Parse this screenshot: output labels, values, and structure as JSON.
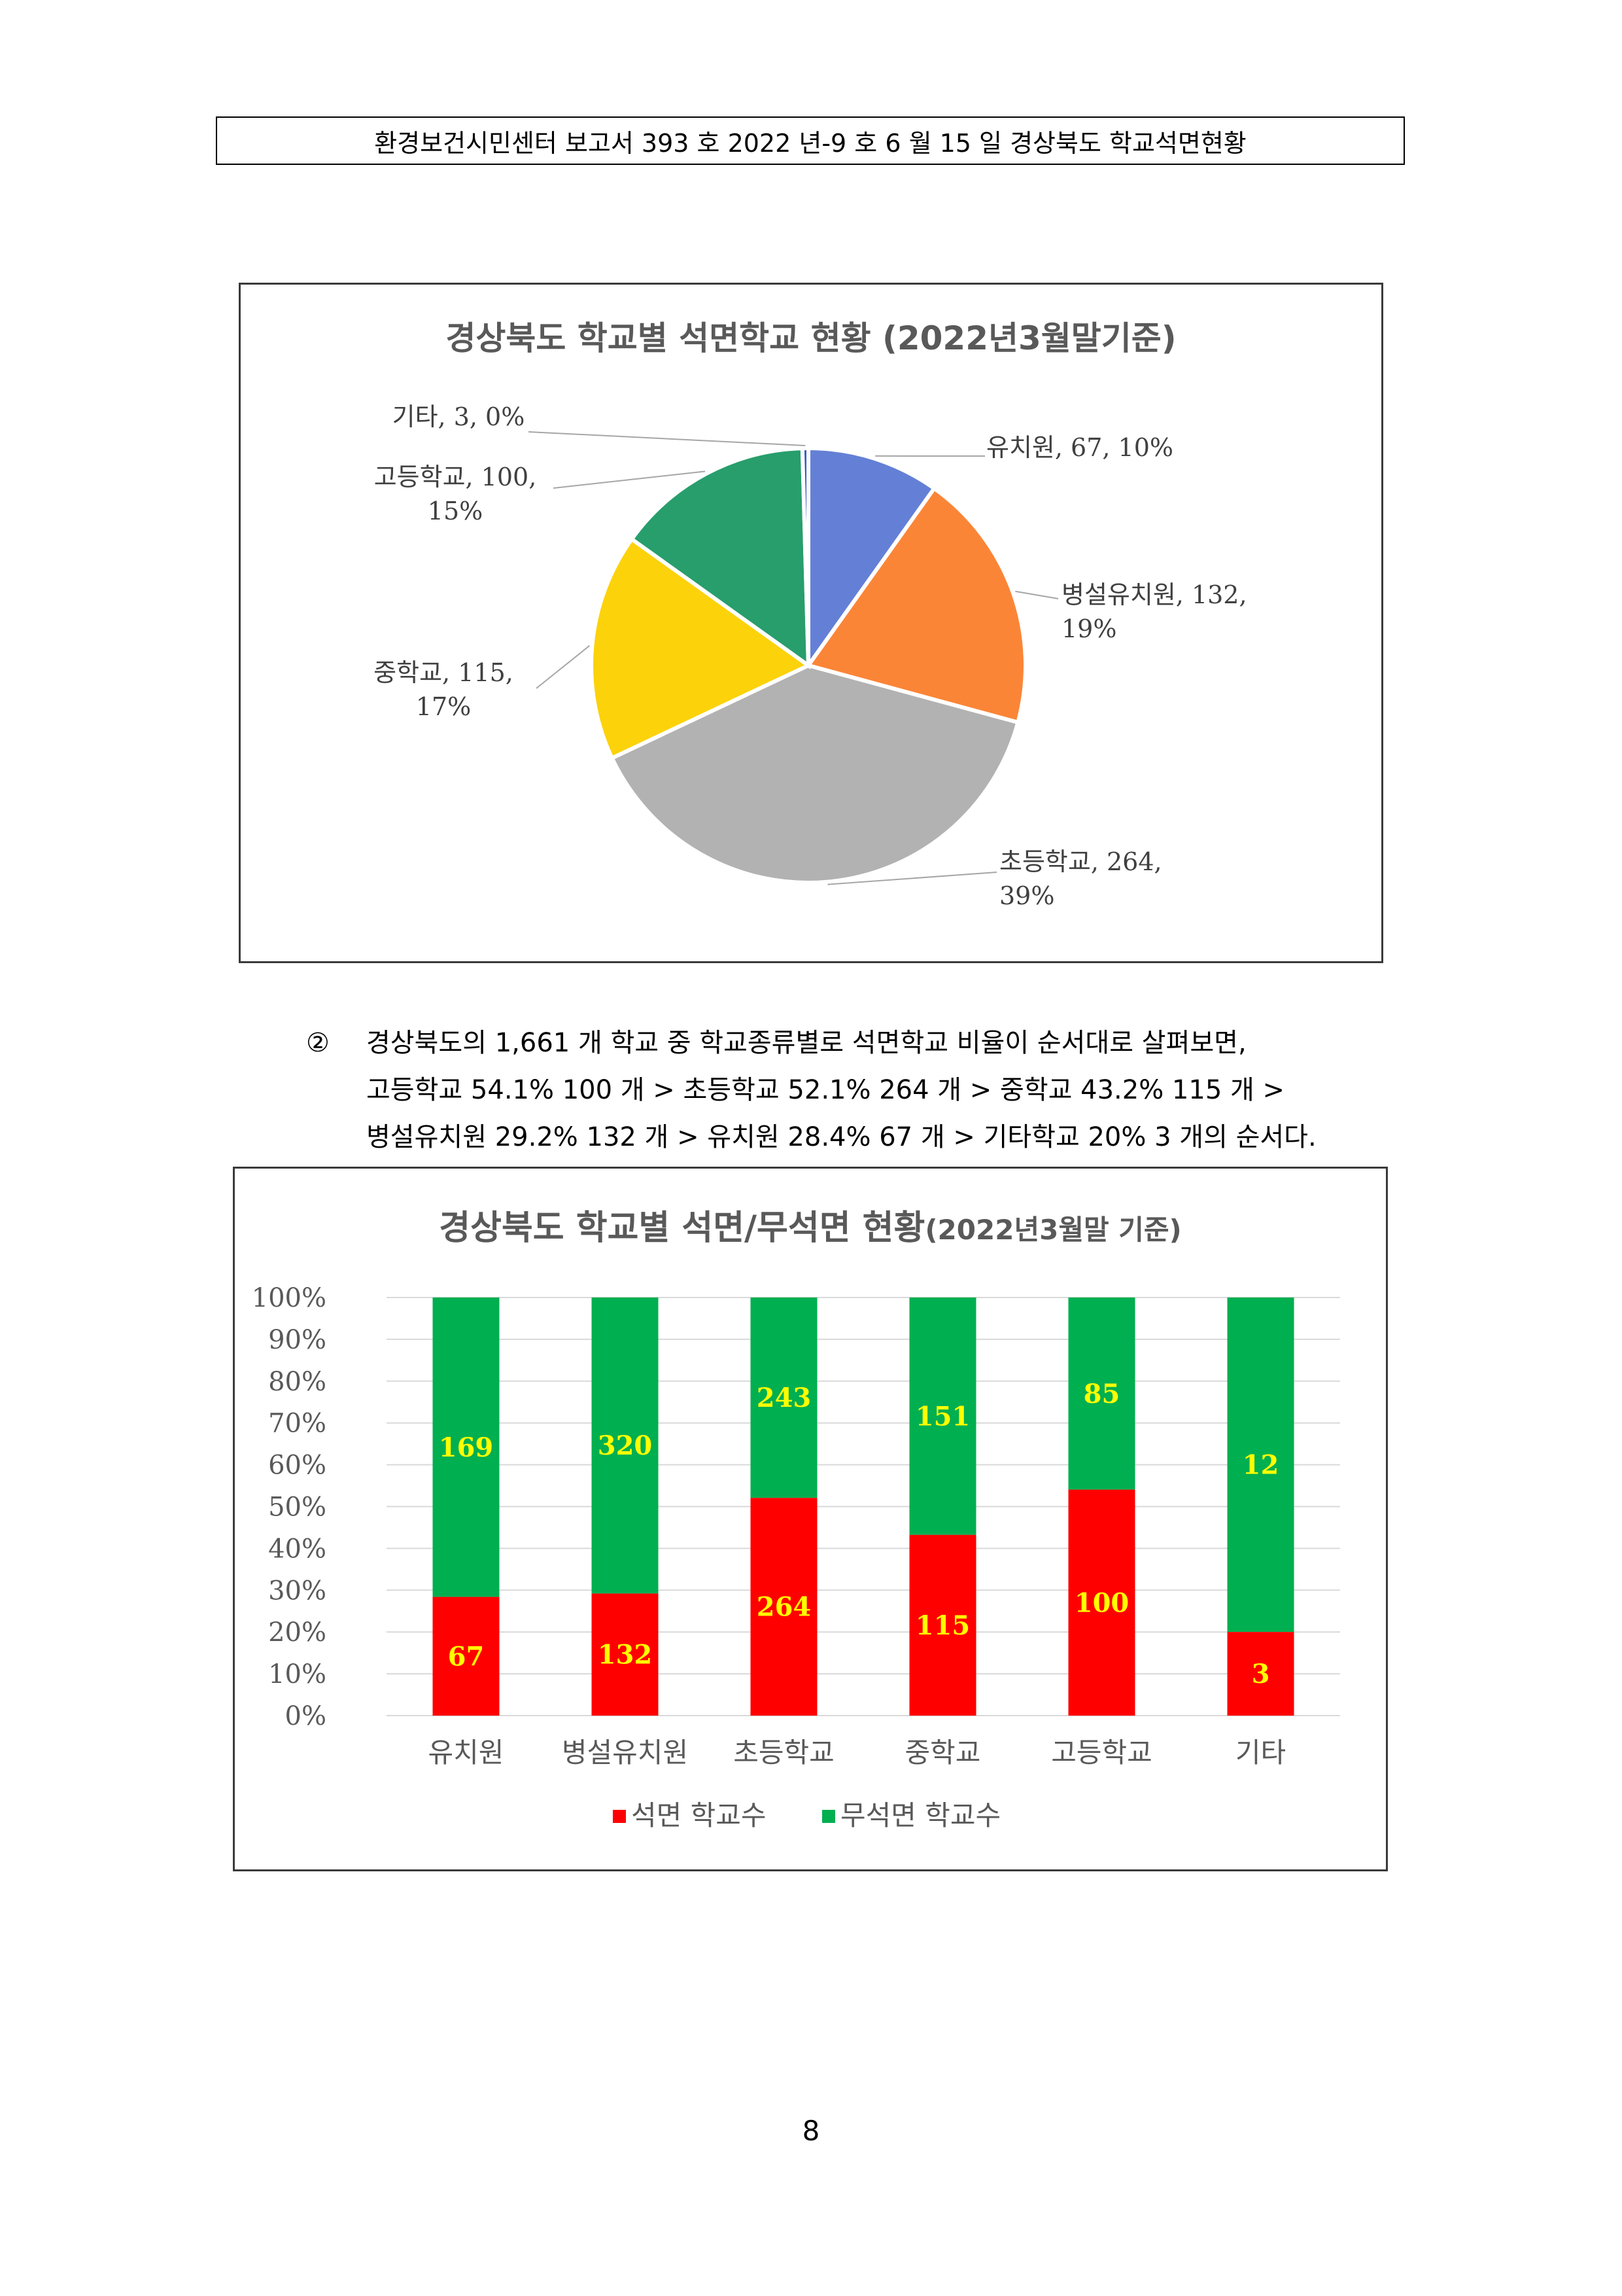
{
  "header": "환경보건시민센터  보고서  393 호  2022 년-9 호  6 월 15 일  경상북도  학교석면현황",
  "pie": {
    "title": "경상북도 학교별 석면학교 현황 (2022년3월말기준)",
    "label_lines": [
      [
        "유치원, 67, 10%"
      ],
      [
        "병설유치원, 132,",
        "19%"
      ],
      [
        "초등학교, 264,",
        "39%"
      ],
      [
        "중학교, 115,",
        "17%"
      ],
      [
        "고등학교, 100,",
        "15%"
      ],
      [
        "기타, 3, 0%"
      ]
    ]
  },
  "paragraph": {
    "marker": "②",
    "lines": [
      "경상북도의 1,661 개  학교  중  학교종류별로  석면학교  비율이  순서대로  살펴보면,",
      "고등학교  54.1% 100 개  >  초등학교  52.1% 264 개  >  중학교  43.2% 115 개  >",
      "병설유치원  29.2% 132 개  >  유치원  28.4% 67 개  >  기타학교  20% 3 개의  순서다."
    ]
  },
  "bar": {
    "title_main": "경상북도 학교별 석면/무석면 현황",
    "title_sub": "(2022년3월말 기준)"
  },
  "page_number": "8",
  "chart_data": [
    {
      "type": "pie",
      "title": "경상북도 학교별 석면학교 현황 (2022년3월말기준)",
      "categories": [
        "유치원",
        "병설유치원",
        "초등학교",
        "중학교",
        "고등학교",
        "기타"
      ],
      "values": [
        67,
        132,
        264,
        115,
        100,
        3
      ],
      "percent_labels": [
        "10%",
        "19%",
        "39%",
        "17%",
        "15%",
        "0%"
      ],
      "colors": [
        "#6480d6",
        "#fb8537",
        "#b2b2b2",
        "#fcd20a",
        "#279e6c",
        "#3b5bc4"
      ],
      "legend": "none (outside labels with leader lines)"
    },
    {
      "type": "bar",
      "stacked": "percent",
      "title": "경상북도 학교별 석면/무석면 현황(2022년3월말 기준)",
      "categories": [
        "유치원",
        "병설유치원",
        "초등학교",
        "중학교",
        "고등학교",
        "기타"
      ],
      "series": [
        {
          "name": "석면 학교수",
          "values": [
            67,
            132,
            264,
            115,
            100,
            3
          ],
          "color": "#fe0000"
        },
        {
          "name": "무석면 학교수",
          "values": [
            169,
            320,
            243,
            151,
            85,
            12
          ],
          "color": "#00af50"
        }
      ],
      "y_ticks": [
        "0%",
        "10%",
        "20%",
        "30%",
        "40%",
        "50%",
        "60%",
        "70%",
        "80%",
        "90%",
        "100%"
      ],
      "ylim": [
        0,
        100
      ],
      "grid": true,
      "legend": "bottom",
      "data_label_color": "#ffff00"
    }
  ]
}
